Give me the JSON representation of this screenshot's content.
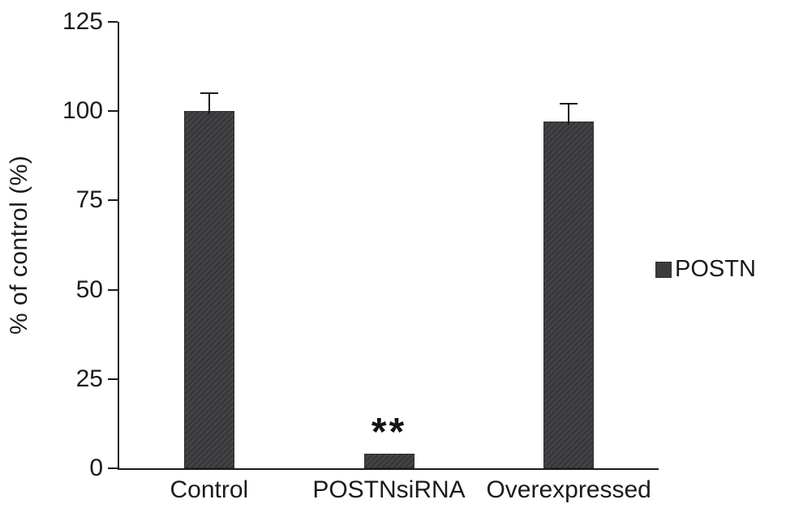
{
  "chart_data": {
    "type": "bar",
    "title": "",
    "xlabel": "",
    "ylabel": "% of control (%)",
    "ylim": [
      0,
      125
    ],
    "yticks": [
      0,
      25,
      50,
      75,
      100,
      125
    ],
    "categories": [
      "Control",
      "POSTNsiRNA",
      "Overexpressed"
    ],
    "series": [
      {
        "name": "POSTN",
        "values": [
          100,
          4,
          97
        ],
        "errors_plus": [
          5,
          0,
          5
        ],
        "color": "#3c3c3e"
      }
    ],
    "annotations": [
      {
        "category_index": 1,
        "text": "**"
      }
    ],
    "legend": {
      "position": "right",
      "entries": [
        {
          "label": "POSTN",
          "swatch_color": "#3c3c3e"
        }
      ]
    },
    "grid": false,
    "background_color": "#ffffff",
    "axis_color": "#1b1b1b"
  }
}
